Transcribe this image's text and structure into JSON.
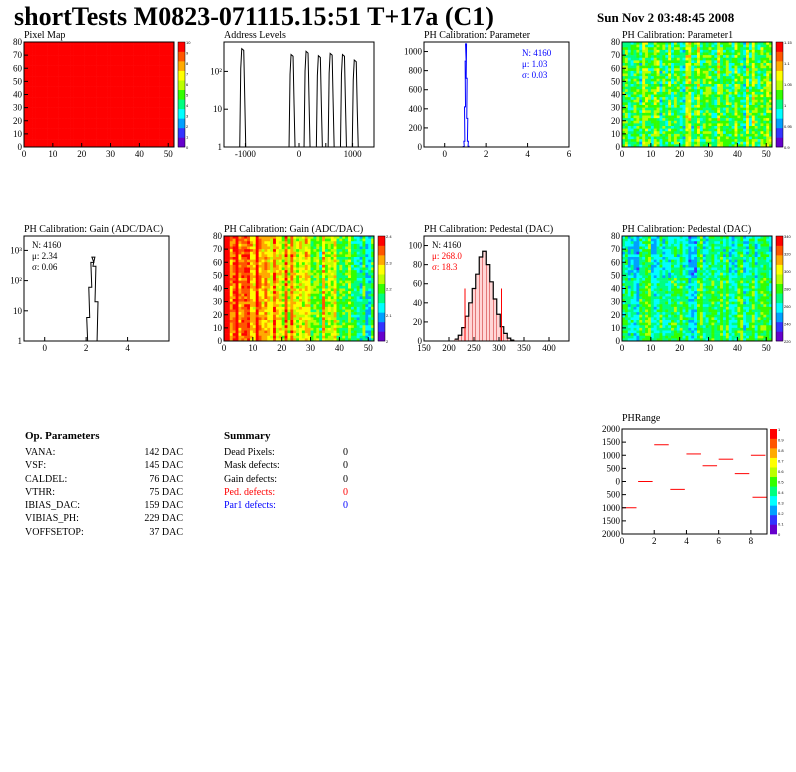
{
  "header": {
    "title": "shortTests M0823-071115.15:51 T+17a (C1)",
    "date": "Sun Nov  2 03:48:45 2008"
  },
  "colors": {
    "red": "#ff0000",
    "blue": "#0000ff",
    "black": "#000000",
    "palette": [
      "#6600cc",
      "#3333ff",
      "#00a0ff",
      "#00ffff",
      "#00ff80",
      "#33ff00",
      "#bbff00",
      "#ffff00",
      "#ffaa00",
      "#ff5500",
      "#ff0000"
    ]
  },
  "chart_data": [
    {
      "id": "pixel-map",
      "type": "heatmap",
      "title": "Pixel Map",
      "xlim": [
        0,
        52
      ],
      "ylim": [
        0,
        80
      ],
      "xticks": [
        0,
        10,
        20,
        30,
        40,
        50
      ],
      "yticks": [
        0,
        10,
        20,
        30,
        40,
        50,
        60,
        70,
        80
      ],
      "uniform_value": 10,
      "zlim": [
        0,
        10
      ],
      "zticks": [
        0,
        1,
        2,
        3,
        4,
        5,
        6,
        7,
        8,
        9,
        10
      ]
    },
    {
      "id": "address-levels",
      "type": "bar",
      "title": "Address Levels",
      "log_y": true,
      "xlim": [
        -1400,
        1400
      ],
      "xticks": [
        -1000,
        0,
        500,
        1000
      ],
      "xtick_labels": [
        "-1000",
        "0",
        "",
        "1000"
      ],
      "ytick_labels": [
        "1",
        "10",
        "10²"
      ],
      "peaks": [
        {
          "x": -1050,
          "height": 400
        },
        {
          "x": -130,
          "height": 280
        },
        {
          "x": 150,
          "height": 340
        },
        {
          "x": 380,
          "height": 260
        },
        {
          "x": 600,
          "height": 300
        },
        {
          "x": 830,
          "height": 280
        },
        {
          "x": 1050,
          "height": 200
        }
      ]
    },
    {
      "id": "ph-calibration-parameter",
      "type": "bar",
      "title": "PH Calibration: Parameter",
      "xlim": [
        -1,
        6
      ],
      "ylim": [
        0,
        1100
      ],
      "xticks": [
        0,
        2,
        4,
        6
      ],
      "yticks": [
        0,
        200,
        400,
        600,
        800,
        1000
      ],
      "stats": {
        "n": "N: 4160",
        "mu": "μ: 1.03",
        "sigma": "σ: 0.03"
      },
      "bins": [
        {
          "x": 0.92,
          "y": 5
        },
        {
          "x": 0.95,
          "y": 60
        },
        {
          "x": 0.98,
          "y": 420
        },
        {
          "x": 1.01,
          "y": 900
        },
        {
          "x": 1.03,
          "y": 1080
        },
        {
          "x": 1.06,
          "y": 720
        },
        {
          "x": 1.09,
          "y": 300
        },
        {
          "x": 1.12,
          "y": 60
        },
        {
          "x": 1.15,
          "y": 8
        }
      ]
    },
    {
      "id": "ph-calibration-parameter1",
      "type": "heatmap",
      "title": "PH Calibration: Parameter1",
      "xlim": [
        0,
        52
      ],
      "ylim": [
        0,
        80
      ],
      "xticks": [
        0,
        10,
        20,
        30,
        40,
        50
      ],
      "yticks": [
        0,
        10,
        20,
        30,
        40,
        50,
        60,
        70,
        80
      ],
      "zlim": [
        0.9,
        1.15
      ],
      "ztick_labels": [
        "0.9",
        "0.95",
        "1",
        "1.05",
        "1.1",
        "1.15"
      ]
    },
    {
      "id": "ph-calibration-gain",
      "type": "bar",
      "title": "PH Calibration: Gain (ADC/DAC)",
      "log_y": true,
      "xlim": [
        -1,
        6
      ],
      "xticks": [
        0,
        2,
        4
      ],
      "ytick_labels": [
        "1",
        "10",
        "10²",
        "10³"
      ],
      "stats": {
        "n": "N: 4160",
        "mu": "μ: 2.34",
        "sigma": "σ: 0.06"
      },
      "bins": [
        {
          "x": 2.0,
          "y": 1
        },
        {
          "x": 2.1,
          "y": 6
        },
        {
          "x": 2.2,
          "y": 60
        },
        {
          "x": 2.3,
          "y": 400
        },
        {
          "x": 2.35,
          "y": 600
        },
        {
          "x": 2.4,
          "y": 300
        },
        {
          "x": 2.5,
          "y": 20
        },
        {
          "x": 2.6,
          "y": 1
        }
      ]
    },
    {
      "id": "ph-calibration-gain-map",
      "type": "heatmap",
      "title": "PH Calibration: Gain (ADC/DAC)",
      "xlim": [
        0,
        52
      ],
      "ylim": [
        0,
        80
      ],
      "xticks": [
        0,
        10,
        20,
        30,
        40,
        50
      ],
      "yticks": [
        0,
        10,
        20,
        30,
        40,
        50,
        60,
        70,
        80
      ],
      "zlim": [
        2.0,
        2.4
      ],
      "ztick_labels": [
        "2",
        "2.1",
        "2.2",
        "2.3",
        "2.4"
      ]
    },
    {
      "id": "ph-calibration-pedestal",
      "type": "bar",
      "title": "PH Calibration: Pedestal (DAC)",
      "xlim": [
        150,
        440
      ],
      "ylim": [
        0,
        110
      ],
      "xticks": [
        150,
        200,
        250,
        300,
        350,
        400
      ],
      "yticks": [
        0,
        20,
        40,
        60,
        80,
        100
      ],
      "stats": {
        "n": "N: 4160",
        "mu": "μ: 268.0",
        "sigma": "σ: 18.3"
      },
      "cut_lines": [
        232,
        305
      ],
      "bins": [
        {
          "x": 215,
          "y": 2
        },
        {
          "x": 222,
          "y": 6
        },
        {
          "x": 229,
          "y": 14
        },
        {
          "x": 236,
          "y": 26
        },
        {
          "x": 243,
          "y": 40
        },
        {
          "x": 250,
          "y": 55
        },
        {
          "x": 257,
          "y": 70
        },
        {
          "x": 264,
          "y": 88
        },
        {
          "x": 271,
          "y": 94
        },
        {
          "x": 278,
          "y": 80
        },
        {
          "x": 285,
          "y": 62
        },
        {
          "x": 292,
          "y": 44
        },
        {
          "x": 299,
          "y": 28
        },
        {
          "x": 306,
          "y": 15
        },
        {
          "x": 313,
          "y": 8
        },
        {
          "x": 320,
          "y": 3
        },
        {
          "x": 327,
          "y": 1
        }
      ]
    },
    {
      "id": "ph-calibration-pedestal-map",
      "type": "heatmap",
      "title": "PH Calibration: Pedestal (DAC)",
      "xlim": [
        0,
        52
      ],
      "ylim": [
        0,
        80
      ],
      "xticks": [
        0,
        10,
        20,
        30,
        40,
        50
      ],
      "yticks": [
        0,
        10,
        20,
        30,
        40,
        50,
        60,
        70,
        80
      ],
      "zlim": [
        220,
        340
      ],
      "ztick_labels": [
        "220",
        "240",
        "260",
        "280",
        "300",
        "320",
        "340"
      ]
    },
    {
      "id": "phrange",
      "type": "scatter",
      "title": "PHRange",
      "xlim": [
        0,
        9
      ],
      "ylim": [
        -2000,
        2000
      ],
      "xticks": [
        0,
        2,
        4,
        6,
        8
      ],
      "yticks": [
        -2000,
        -1500,
        -1000,
        -500,
        0,
        500,
        1000,
        1500,
        2000
      ],
      "ytick_labels": [
        "2000",
        "1500",
        "1000",
        "500",
        "0",
        "500",
        "1000",
        "1500",
        "2000"
      ],
      "zticks": [
        "0",
        "0.1",
        "0.2",
        "0.3",
        "0.4",
        "0.5",
        "0.6",
        "0.7",
        "0.8",
        "0.9",
        "1"
      ],
      "segments": [
        {
          "x": 0,
          "y": -1000
        },
        {
          "x": 1,
          "y": 0
        },
        {
          "x": 2,
          "y": 1400
        },
        {
          "x": 3,
          "y": -300
        },
        {
          "x": 4,
          "y": 1050
        },
        {
          "x": 5,
          "y": 600
        },
        {
          "x": 6,
          "y": 850
        },
        {
          "x": 7,
          "y": 300
        },
        {
          "x": 8,
          "y": 1000
        },
        {
          "x": 8.1,
          "y": -600
        }
      ]
    }
  ],
  "params": {
    "title": "Op. Parameters",
    "rows": [
      {
        "k": "VANA:",
        "v": "142 DAC"
      },
      {
        "k": "VSF:",
        "v": "145 DAC"
      },
      {
        "k": "CALDEL:",
        "v": "76 DAC"
      },
      {
        "k": "VTHR:",
        "v": "75 DAC"
      },
      {
        "k": "IBIAS_DAC:",
        "v": "159 DAC"
      },
      {
        "k": "VIBIAS_PH:",
        "v": "229 DAC"
      },
      {
        "k": "VOFFSETOP:",
        "v": "37 DAC"
      }
    ]
  },
  "summary": {
    "title": "Summary",
    "rows": [
      {
        "k": "Dead Pixels:",
        "v": "0",
        "color": "#000000"
      },
      {
        "k": "Mask defects:",
        "v": "0",
        "color": "#000000"
      },
      {
        "k": "Gain defects:",
        "v": "0",
        "color": "#000000"
      },
      {
        "k": "Ped. defects:",
        "v": "0",
        "color": "#ff0000"
      },
      {
        "k": "Par1 defects:",
        "v": "0",
        "color": "#0000ff"
      }
    ]
  }
}
